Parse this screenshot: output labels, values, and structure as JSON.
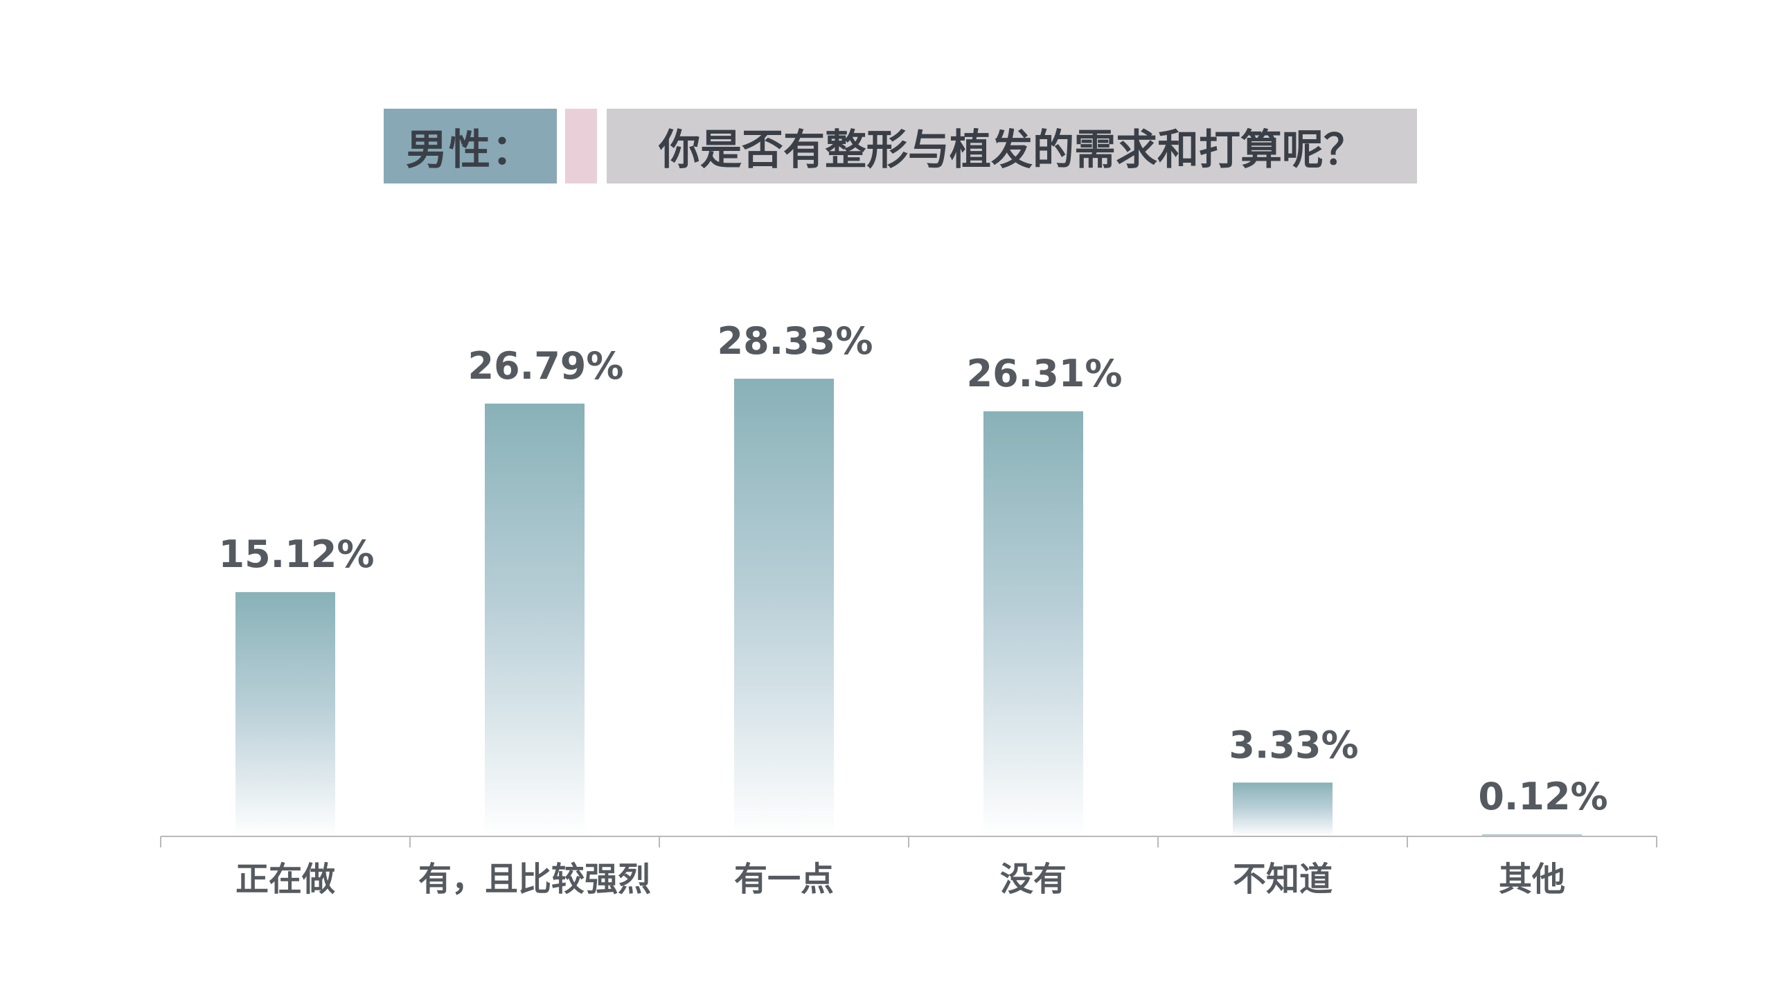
{
  "title": {
    "label": "男性：",
    "question": "你是否有整形与植发的需求和打算呢？",
    "label_bg": "#88a8b5",
    "accent_bg": "#e9cfd8",
    "question_bg": "#cfcdd0"
  },
  "chart_data": {
    "type": "bar",
    "categories": [
      "正在做",
      "有，且比较强烈",
      "有一点",
      "没有",
      "不知道",
      "其他"
    ],
    "values": [
      15.12,
      26.79,
      28.33,
      26.31,
      3.33,
      0.12
    ],
    "value_labels": [
      "15.12%",
      "26.79%",
      "28.33%",
      "26.31%",
      "3.33%",
      "0.12%"
    ],
    "unit": "%",
    "ylim": [
      0,
      30
    ],
    "grid": false,
    "legend": "none",
    "bar_color_top": "#88b1b7",
    "bar_color_bottom": "#ffffff"
  },
  "colors": {
    "text": "#555a60",
    "axis": "#b9b9b9"
  }
}
